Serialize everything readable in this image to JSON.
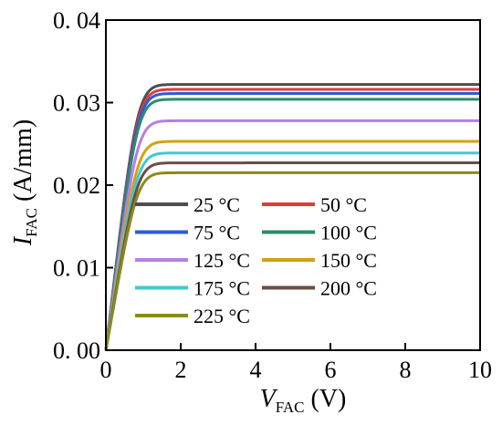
{
  "chart_data": {
    "type": "line",
    "xlabel": {
      "main": "V",
      "sub": "FAC",
      "unit": " (V)"
    },
    "ylabel": {
      "main": "I",
      "sub": "FAC",
      "unit": " (A/mm)"
    },
    "xlim": [
      0,
      10
    ],
    "ylim": [
      0,
      0.04
    ],
    "xticks": [
      "0",
      "2",
      "4",
      "6",
      "8",
      "10"
    ],
    "yticks": [
      "0. 00",
      "0. 01",
      "0. 02",
      "0. 03",
      "0. 04"
    ],
    "grid": false,
    "legend_position": "center-left",
    "series": [
      {
        "name": "25 °C",
        "color": "#4d4d4d",
        "sat": 0.0322,
        "knee": 0.85
      },
      {
        "name": "50 °C",
        "color": "#e03b3b",
        "sat": 0.0316,
        "knee": 0.85
      },
      {
        "name": "75 °C",
        "color": "#2a5bd7",
        "sat": 0.0311,
        "knee": 0.85
      },
      {
        "name": "100 °C",
        "color": "#2e8b6e",
        "sat": 0.0304,
        "knee": 0.85
      },
      {
        "name": "125 °C",
        "color": "#b67ee6",
        "sat": 0.0278,
        "knee": 0.85
      },
      {
        "name": "150 °C",
        "color": "#d4a20c",
        "sat": 0.0253,
        "knee": 0.85
      },
      {
        "name": "175 °C",
        "color": "#3fc8d6",
        "sat": 0.0239,
        "knee": 0.85
      },
      {
        "name": "200 °C",
        "color": "#6b4c45",
        "sat": 0.0227,
        "knee": 0.85
      },
      {
        "name": "225 °C",
        "color": "#8c8a1a",
        "sat": 0.0215,
        "knee": 0.85
      }
    ]
  }
}
